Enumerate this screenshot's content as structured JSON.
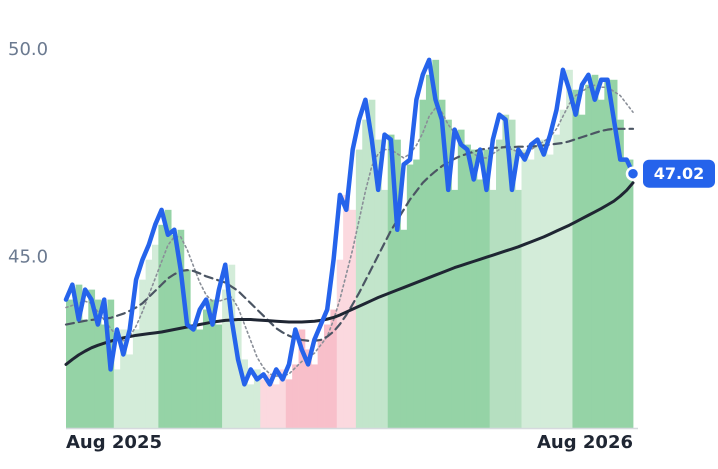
{
  "chart_data": {
    "type": "line",
    "categories": [
      "Aug 2025",
      null,
      null,
      null,
      null,
      null,
      null,
      null,
      null,
      null,
      null,
      null,
      null,
      null,
      null,
      null,
      null,
      null,
      null,
      null,
      null,
      null,
      null,
      null,
      null,
      null,
      null,
      null,
      null,
      null,
      null,
      null,
      null,
      null,
      null,
      null,
      null,
      null,
      null,
      null,
      null,
      null,
      null,
      null,
      null,
      null,
      null,
      null,
      null,
      null,
      null,
      null,
      null,
      null,
      null,
      null,
      null,
      null,
      null,
      null,
      null,
      null,
      null,
      null,
      null,
      null,
      null,
      null,
      null,
      null,
      null,
      null,
      null,
      null,
      null,
      null,
      null,
      null,
      null,
      null,
      null,
      null,
      null,
      null,
      null,
      null,
      null,
      null,
      null,
      "Aug 2026"
    ],
    "ylim": [
      40.9,
      51.2
    ],
    "yticks": [
      {
        "value": 45,
        "label": "45.0"
      },
      {
        "value": 50,
        "label": "50.0"
      }
    ],
    "series": [
      {
        "type": "bar",
        "values": [
          43.99,
          43.99,
          44.35,
          43.51,
          44.23,
          43.99,
          43.39,
          43.99,
          42.31,
          43.27,
          42.67,
          43.27,
          44.47,
          44.95,
          45.31,
          45.79,
          46.15,
          45.55,
          45.67,
          44.71,
          43.39,
          43.27,
          43.75,
          43.99,
          43.39,
          44.23,
          44.83,
          43.51,
          42.55,
          41.95,
          42.31,
          42.07,
          42.19,
          41.95,
          42.31,
          42.07,
          42.43,
          43.27,
          42.79,
          42.43,
          43.03,
          43.39,
          43.75,
          44.95,
          46.51,
          46.15,
          47.6,
          48.32,
          48.8,
          47.84,
          46.63,
          47.96,
          47.84,
          45.67,
          47.24,
          47.36,
          48.8,
          49.4,
          49.76,
          48.8,
          48.32,
          46.63,
          48.08,
          47.72,
          47.6,
          46.88,
          47.6,
          46.63,
          47.84,
          48.44,
          48.32,
          46.63,
          47.6,
          47.36,
          47.72,
          47.84,
          47.48,
          47.96,
          48.56,
          49.52,
          49.04,
          48.44,
          49.16,
          49.4,
          48.8,
          49.28,
          49.28,
          48.32,
          47.36,
          47.36
        ],
        "colors": [
          "#95d3a6",
          "#95d3a6",
          "#95d3a6",
          "#95d3a6",
          "#95d3a6",
          "#95d3a6",
          "#95d3a6",
          "#95d3a6",
          "#d3ecd9",
          "#d3ecd9",
          "#d3ecd9",
          "#d3ecd9",
          "#d3ecd9",
          "#d3ecd9",
          "#d3ecd9",
          "#95d3a6",
          "#95d3a6",
          "#95d3a6",
          "#95d3a6",
          "#95d3a6",
          "#95d3a6",
          "#95d3a6",
          "#95d3a6",
          "#95d3a6",
          "#95d3a6",
          "#d3ecd9",
          "#d3ecd9",
          "#d3ecd9",
          "#d3ecd9",
          "#d3ecd9",
          "#d3ecd9",
          "#fbd9df",
          "#fbd9df",
          "#fbd9df",
          "#fbd9df",
          "#f8bfca",
          "#f8bfca",
          "#f8bfca",
          "#f8bfca",
          "#f8bfca",
          "#f8bfca",
          "#f8bfca",
          "#f8bfca",
          "#fbd9df",
          "#fbd9df",
          "#fbd9df",
          "#c2e5cb",
          "#c2e5cb",
          "#c2e5cb",
          "#c2e5cb",
          "#c2e5cb",
          "#95d3a6",
          "#95d3a6",
          "#95d3a6",
          "#95d3a6",
          "#95d3a6",
          "#95d3a6",
          "#95d3a6",
          "#95d3a6",
          "#95d3a6",
          "#95d3a6",
          "#95d3a6",
          "#95d3a6",
          "#95d3a6",
          "#95d3a6",
          "#95d3a6",
          "#95d3a6",
          "#b5dfc0",
          "#b5dfc0",
          "#b5dfc0",
          "#b5dfc0",
          "#b5dfc0",
          "#d3ecd9",
          "#d3ecd9",
          "#d3ecd9",
          "#d3ecd9",
          "#d3ecd9",
          "#d3ecd9",
          "#d3ecd9",
          "#d3ecd9",
          "#95d3a6",
          "#95d3a6",
          "#95d3a6",
          "#95d3a6",
          "#95d3a6",
          "#95d3a6",
          "#95d3a6",
          "#95d3a6",
          "#95d3a6",
          "#95d3a6"
        ]
      },
      {
        "type": "line",
        "color": "#8a8f98",
        "style": "dotted",
        "values": [
          43.8,
          43.85,
          43.9,
          43.95,
          43.9,
          43.7,
          43.5,
          43.3,
          43.1,
          43.0,
          43.1,
          43.35,
          43.7,
          44.1,
          44.5,
          44.9,
          45.3,
          45.5,
          45.5,
          45.2,
          44.8,
          44.4,
          44.1,
          43.95,
          43.95,
          44.0,
          44.05,
          43.8,
          43.4,
          43.0,
          42.6,
          42.35,
          42.2,
          42.15,
          42.15,
          42.2,
          42.35,
          42.5,
          42.6,
          42.7,
          42.9,
          43.1,
          43.5,
          44.0,
          44.6,
          45.2,
          45.9,
          46.6,
          47.2,
          47.5,
          47.6,
          47.6,
          47.5,
          47.4,
          47.5,
          47.7,
          48.0,
          48.4,
          48.6,
          48.5,
          48.2,
          48.0,
          47.8,
          47.6,
          47.5,
          47.4,
          47.4,
          47.5,
          47.6,
          47.7,
          47.6,
          47.55,
          47.5,
          47.6,
          47.7,
          47.8,
          47.9,
          48.1,
          48.4,
          48.7,
          48.9,
          49.0,
          49.1,
          49.15,
          49.1,
          49.1,
          49.0,
          48.9,
          48.7,
          48.5
        ]
      },
      {
        "type": "line",
        "color": "#4b5563",
        "style": "dashed",
        "values": [
          43.39,
          43.42,
          43.45,
          43.48,
          43.5,
          43.52,
          43.53,
          43.55,
          43.6,
          43.65,
          43.72,
          43.8,
          43.9,
          44.05,
          44.2,
          44.35,
          44.5,
          44.6,
          44.68,
          44.7,
          44.68,
          44.62,
          44.55,
          44.5,
          44.45,
          44.4,
          44.3,
          44.2,
          44.05,
          43.9,
          43.75,
          43.6,
          43.45,
          43.3,
          43.2,
          43.12,
          43.06,
          43.02,
          43.0,
          43.0,
          43.02,
          43.1,
          43.22,
          43.4,
          43.62,
          43.88,
          44.15,
          44.45,
          44.75,
          45.05,
          45.35,
          45.65,
          45.9,
          46.15,
          46.4,
          46.6,
          46.8,
          46.95,
          47.08,
          47.2,
          47.3,
          47.38,
          47.45,
          47.5,
          47.55,
          47.6,
          47.62,
          47.64,
          47.65,
          47.66,
          47.66,
          47.67,
          47.67,
          47.68,
          47.68,
          47.7,
          47.72,
          47.74,
          47.76,
          47.8,
          47.85,
          47.9,
          47.95,
          48.0,
          48.05,
          48.08,
          48.1,
          48.1,
          48.1,
          48.1
        ]
      },
      {
        "type": "line",
        "color": "#1f2633",
        "style": "solid",
        "values": [
          42.43,
          42.55,
          42.66,
          42.75,
          42.83,
          42.89,
          42.94,
          42.99,
          43.03,
          43.07,
          43.1,
          43.13,
          43.15,
          43.17,
          43.19,
          43.21,
          43.24,
          43.27,
          43.3,
          43.33,
          43.36,
          43.39,
          43.42,
          43.45,
          43.47,
          43.49,
          43.5,
          43.51,
          43.51,
          43.51,
          43.5,
          43.49,
          43.48,
          43.47,
          43.46,
          43.45,
          43.45,
          43.45,
          43.46,
          43.47,
          43.49,
          43.52,
          43.56,
          43.62,
          43.69,
          43.76,
          43.83,
          43.9,
          43.97,
          44.04,
          44.1,
          44.16,
          44.22,
          44.28,
          44.34,
          44.4,
          44.46,
          44.52,
          44.58,
          44.64,
          44.7,
          44.76,
          44.81,
          44.86,
          44.91,
          44.96,
          45.01,
          45.06,
          45.11,
          45.16,
          45.21,
          45.26,
          45.32,
          45.38,
          45.44,
          45.5,
          45.57,
          45.64,
          45.71,
          45.78,
          45.86,
          45.94,
          46.02,
          46.1,
          46.18,
          46.27,
          46.36,
          46.48,
          46.62,
          46.8
        ]
      },
      {
        "type": "line",
        "color": "#2563eb",
        "style": "bold",
        "values": [
          43.99,
          44.35,
          43.51,
          44.23,
          43.99,
          43.39,
          43.99,
          42.31,
          43.27,
          42.67,
          43.27,
          44.47,
          44.95,
          45.31,
          45.79,
          46.15,
          45.55,
          45.67,
          44.71,
          43.39,
          43.27,
          43.75,
          43.99,
          43.39,
          44.23,
          44.83,
          43.51,
          42.55,
          41.95,
          42.31,
          42.07,
          42.19,
          41.95,
          42.31,
          42.07,
          42.43,
          43.27,
          42.79,
          42.43,
          43.03,
          43.39,
          43.75,
          44.95,
          46.51,
          46.15,
          47.6,
          48.32,
          48.8,
          47.84,
          46.63,
          47.96,
          47.84,
          45.67,
          47.24,
          47.36,
          48.8,
          49.4,
          49.76,
          48.8,
          48.32,
          46.63,
          48.08,
          47.72,
          47.6,
          46.88,
          47.6,
          46.63,
          47.84,
          48.44,
          48.32,
          46.63,
          47.6,
          47.36,
          47.72,
          47.84,
          47.48,
          47.96,
          48.56,
          49.52,
          49.04,
          48.44,
          49.16,
          49.4,
          48.8,
          49.28,
          49.28,
          48.32,
          47.36,
          47.36,
          47.02
        ]
      }
    ]
  }
}
